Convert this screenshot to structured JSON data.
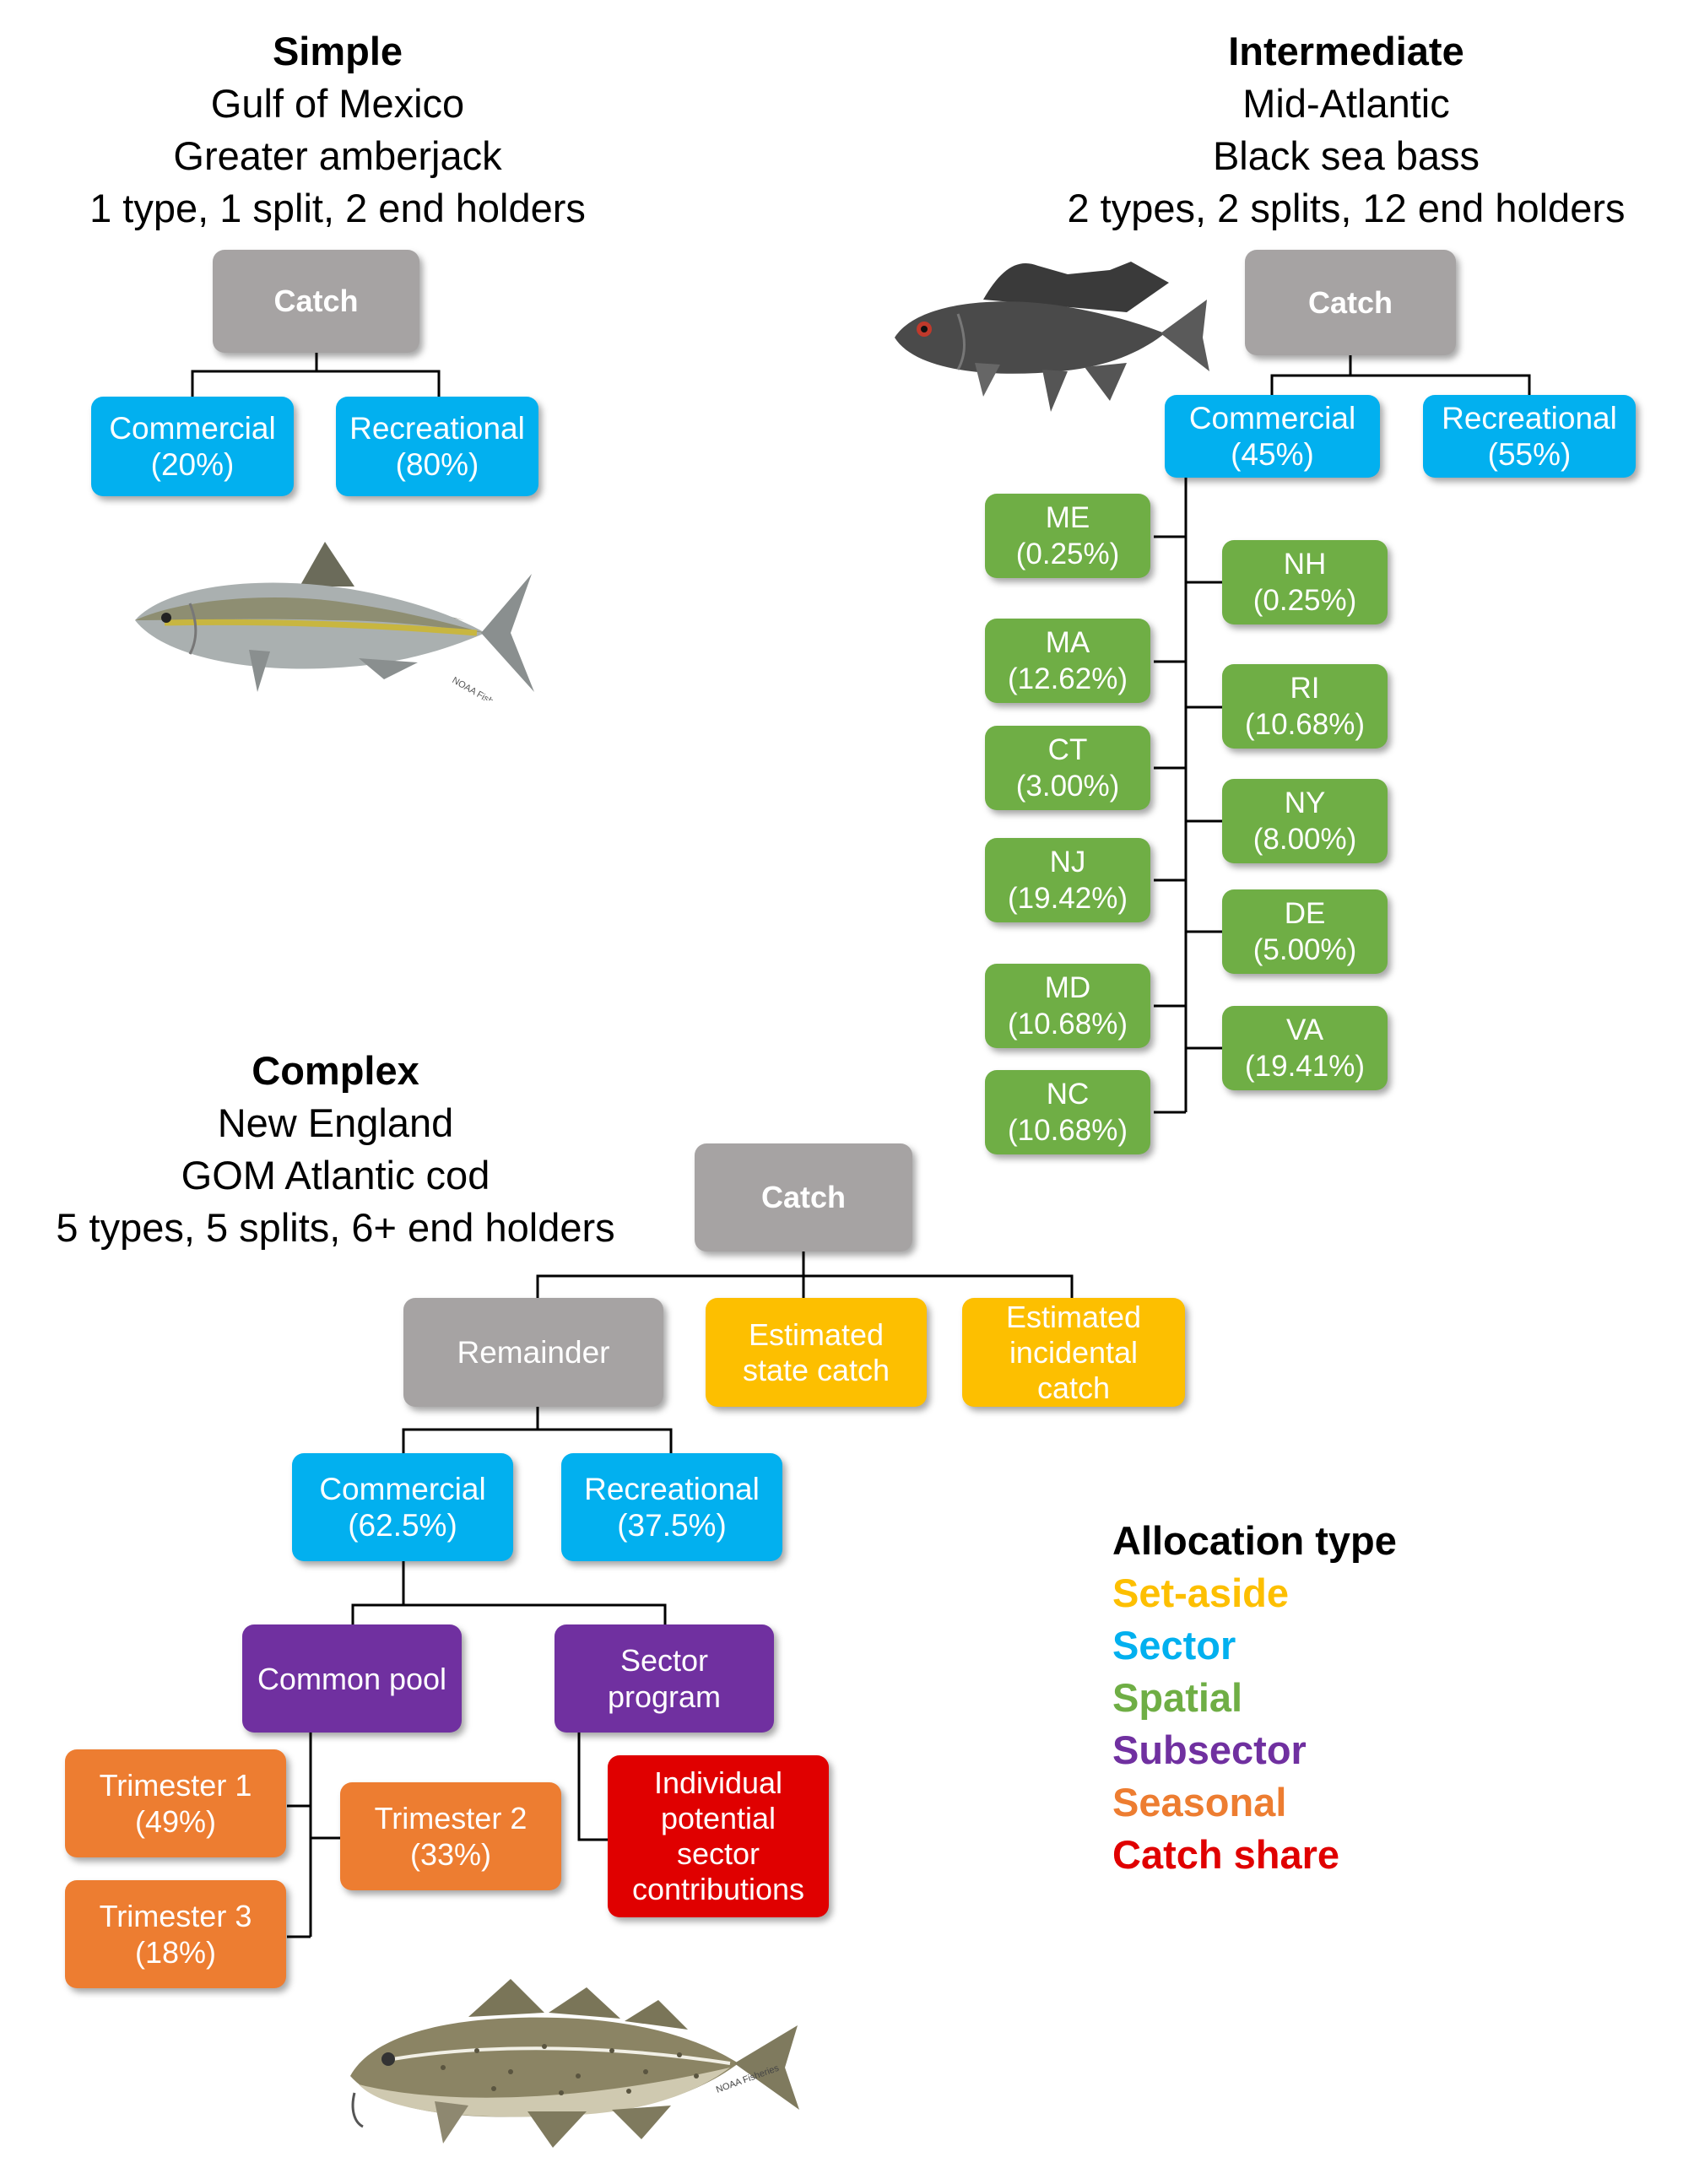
{
  "simple": {
    "heading": "Simple",
    "region": "Gulf of Mexico",
    "species": "Greater amberjack",
    "summary": "1 type, 1 split, 2 end holders",
    "catch": "Catch",
    "commercial": [
      "Commercial",
      "(20%)"
    ],
    "recreational": [
      "Recreational",
      "(80%)"
    ]
  },
  "intermediate": {
    "heading": "Intermediate",
    "region": "Mid-Atlantic",
    "species": "Black sea bass",
    "summary": "2 types, 2 splits, 12 end holders",
    "catch": "Catch",
    "commercial": [
      "Commercial",
      "(45%)"
    ],
    "recreational": [
      "Recreational",
      "(55%)"
    ],
    "states": [
      {
        "code": "ME",
        "pct": "(0.25%)"
      },
      {
        "code": "NH",
        "pct": "(0.25%)"
      },
      {
        "code": "MA",
        "pct": "(12.62%)"
      },
      {
        "code": "RI",
        "pct": "(10.68%)"
      },
      {
        "code": "CT",
        "pct": "(3.00%)"
      },
      {
        "code": "NY",
        "pct": "(8.00%)"
      },
      {
        "code": "NJ",
        "pct": "(19.42%)"
      },
      {
        "code": "DE",
        "pct": "(5.00%)"
      },
      {
        "code": "MD",
        "pct": "(10.68%)"
      },
      {
        "code": "VA",
        "pct": "(19.41%)"
      },
      {
        "code": "NC",
        "pct": "(10.68%)"
      }
    ]
  },
  "complex": {
    "heading": "Complex",
    "region": "New England",
    "species": "GOM Atlantic cod",
    "summary": "5 types, 5 splits, 6+ end holders",
    "catch": "Catch",
    "remainder": "Remainder",
    "state_catch": [
      "Estimated",
      "state catch"
    ],
    "incidental_catch": [
      "Estimated",
      "incidental",
      "catch"
    ],
    "commercial": [
      "Commercial",
      "(62.5%)"
    ],
    "recreational": [
      "Recreational",
      "(37.5%)"
    ],
    "common_pool": "Common pool",
    "sector_program": [
      "Sector",
      "program"
    ],
    "trimester1": [
      "Trimester 1",
      "(49%)"
    ],
    "trimester2": [
      "Trimester 2",
      "(33%)"
    ],
    "trimester3": [
      "Trimester 3",
      "(18%)"
    ],
    "individual": [
      "Individual",
      "potential",
      "sector",
      "contributions"
    ]
  },
  "legend": {
    "title": "Allocation type",
    "items": [
      {
        "label": "Set-aside",
        "color": "#fdbf00"
      },
      {
        "label": "Sector",
        "color": "#02b0ef"
      },
      {
        "label": "Spatial",
        "color": "#6fae45"
      },
      {
        "label": "Subsector",
        "color": "#7030a0"
      },
      {
        "label": "Seasonal",
        "color": "#ed7d31"
      },
      {
        "label": "Catch share",
        "color": "#e00000"
      }
    ]
  },
  "credit": "NOAA Fisheries"
}
